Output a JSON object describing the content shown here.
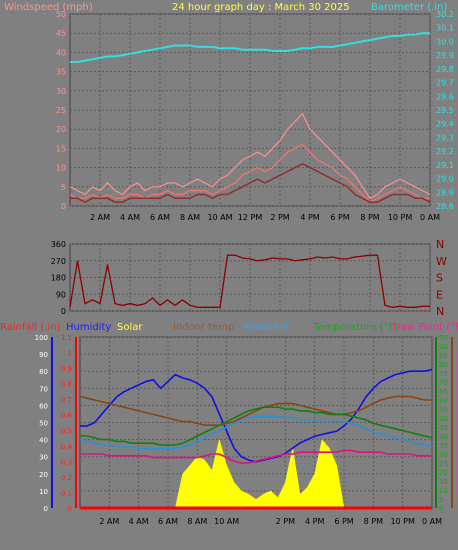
{
  "header": {
    "windspeed_label": "Windspeed (mph)",
    "title": "24 hour graph day : March 30 2025",
    "barometer_label": "Barometer (.in)"
  },
  "colors": {
    "background": "#808080",
    "grid": "#5a5a5a",
    "windspeed": "#ff7070",
    "gust": "#ff9090",
    "wind_avg": "#8c3030",
    "barometer": "#30e0e0",
    "direction": "#8b0000",
    "rainfall": "#ff0000",
    "humidity": "#1010e0",
    "solar": "#ffff00",
    "indoor_temp": "#8b4513",
    "windchill": "#2f8fd0",
    "temperature": "#108010",
    "dewpoint": "#e01080"
  },
  "chart_data": [
    {
      "type": "line",
      "name": "wind_barometer",
      "x_ticks": [
        "2 AM",
        "4 AM",
        "6 AM",
        "8 AM",
        "10 AM",
        "12 PM",
        "2 PM",
        "4 PM",
        "6 PM",
        "8 PM",
        "10 PM",
        "0 AM"
      ],
      "x_hours": [
        0,
        0.5,
        1,
        1.5,
        2,
        2.5,
        3,
        3.5,
        4,
        4.5,
        5,
        5.5,
        6,
        6.5,
        7,
        7.5,
        8,
        8.5,
        9,
        9.5,
        10,
        10.5,
        11,
        11.5,
        12,
        12.5,
        13,
        13.5,
        14,
        14.5,
        15,
        15.5,
        16,
        16.5,
        17,
        17.5,
        18,
        18.5,
        19,
        19.5,
        20,
        20.5,
        21,
        21.5,
        22,
        22.5,
        23,
        23.5,
        24
      ],
      "y_left": {
        "label": "Windspeed (mph)",
        "ticks": [
          0,
          5,
          10,
          15,
          20,
          25,
          30,
          35,
          40,
          45,
          50
        ],
        "ylim": [
          0,
          50
        ]
      },
      "y_right": {
        "label": "Barometer (.in)",
        "ticks": [
          28.8,
          28.9,
          29.0,
          29.1,
          29.2,
          29.3,
          29.4,
          29.5,
          29.6,
          29.7,
          29.8,
          29.9,
          30.0,
          30.1,
          30.2
        ],
        "ylim": [
          28.8,
          30.2
        ]
      },
      "series": [
        {
          "key": "gust",
          "values": [
            5,
            4,
            3,
            5,
            4,
            6,
            4,
            3,
            5,
            6,
            4,
            5,
            5,
            6,
            6,
            5,
            6,
            7,
            6,
            5,
            7,
            8,
            10,
            12,
            13,
            14,
            13,
            15,
            17,
            20,
            22,
            24,
            20,
            18,
            16,
            14,
            12,
            10,
            8,
            5,
            2,
            3,
            5,
            6,
            7,
            6,
            5,
            4,
            3
          ]
        },
        {
          "key": "windspeed",
          "values": [
            3,
            2,
            2,
            3,
            2,
            3,
            2,
            2,
            3,
            3,
            2,
            3,
            3,
            4,
            3,
            3,
            4,
            4,
            4,
            3,
            4,
            5,
            6,
            8,
            9,
            10,
            9,
            10,
            12,
            14,
            15,
            16,
            14,
            12,
            11,
            10,
            8,
            7,
            5,
            3,
            1,
            2,
            3,
            4,
            5,
            4,
            3,
            2,
            2
          ]
        },
        {
          "key": "wind_avg",
          "values": [
            2,
            2,
            1,
            2,
            2,
            2,
            1,
            1,
            2,
            2,
            2,
            2,
            2,
            3,
            2,
            2,
            2,
            3,
            3,
            2,
            3,
            3,
            4,
            5,
            6,
            7,
            6,
            7,
            8,
            9,
            10,
            11,
            10,
            9,
            8,
            7,
            6,
            5,
            3,
            2,
            1,
            1,
            2,
            3,
            3,
            3,
            2,
            2,
            1
          ]
        },
        {
          "key": "barometer",
          "values": [
            29.85,
            29.85,
            29.86,
            29.87,
            29.88,
            29.89,
            29.89,
            29.9,
            29.91,
            29.92,
            29.93,
            29.94,
            29.95,
            29.96,
            29.97,
            29.97,
            29.97,
            29.96,
            29.96,
            29.96,
            29.95,
            29.95,
            29.95,
            29.94,
            29.94,
            29.94,
            29.94,
            29.93,
            29.93,
            29.93,
            29.94,
            29.95,
            29.95,
            29.96,
            29.96,
            29.96,
            29.97,
            29.98,
            29.99,
            30.0,
            30.01,
            30.02,
            30.03,
            30.04,
            30.04,
            30.05,
            30.05,
            30.06,
            30.06
          ]
        }
      ]
    },
    {
      "type": "line",
      "name": "wind_direction",
      "x_ticks": [],
      "y_left": {
        "ticks": [
          0,
          90,
          180,
          270,
          360
        ],
        "ylim": [
          0,
          360
        ]
      },
      "y_right_labels": [
        "N",
        "W",
        "S",
        "E",
        "N"
      ],
      "series": [
        {
          "key": "direction",
          "values": [
            20,
            270,
            40,
            60,
            40,
            250,
            40,
            30,
            40,
            30,
            40,
            70,
            30,
            60,
            30,
            60,
            30,
            20,
            20,
            20,
            20,
            300,
            300,
            285,
            280,
            270,
            275,
            285,
            280,
            280,
            270,
            275,
            280,
            290,
            285,
            290,
            280,
            280,
            290,
            295,
            300,
            300,
            30,
            20,
            25,
            20,
            20,
            25,
            25
          ]
        }
      ]
    },
    {
      "type": "line",
      "name": "temperature_humidity",
      "legend": [
        "Rainfall (.in)",
        "Humidity",
        "Solar",
        "Indoor temp",
        "Windchill",
        "Temperature (°F)",
        "Dew Point (°F)"
      ],
      "x_ticks": [
        "2 AM",
        "4 AM",
        "6 AM",
        "8 AM",
        "10 AM",
        "2 PM",
        "4 PM",
        "6 PM",
        "8 PM",
        "10 PM",
        "0 AM"
      ],
      "y_humidity": {
        "ticks": [
          0,
          10,
          20,
          30,
          40,
          50,
          60,
          70,
          80,
          90,
          100
        ],
        "ylim": [
          0,
          100
        ]
      },
      "y_rain": {
        "ticks": [
          0,
          0.1,
          0.2,
          0.3,
          0.4,
          0.5,
          0.6,
          0.7,
          0.8,
          0.9,
          1,
          1.1
        ],
        "ylim": [
          0,
          1.1
        ]
      },
      "y_temp": {
        "ticks": [
          0,
          5,
          10,
          15,
          20,
          25,
          30,
          35,
          40,
          45,
          50,
          55,
          60,
          65,
          70,
          75,
          80,
          85,
          90,
          95
        ],
        "ylim": [
          0,
          95
        ]
      },
      "series": [
        {
          "key": "humidity",
          "values": [
            48,
            48,
            50,
            55,
            60,
            65,
            68,
            70,
            72,
            74,
            75,
            70,
            74,
            78,
            76,
            75,
            73,
            70,
            65,
            55,
            45,
            35,
            30,
            28,
            27,
            28,
            29,
            30,
            32,
            35,
            38,
            40,
            42,
            43,
            44,
            45,
            48,
            52,
            58,
            65,
            70,
            74,
            76,
            78,
            79,
            80,
            80,
            80,
            81
          ]
        },
        {
          "key": "indoor_temp",
          "values": [
            62,
            61,
            60,
            59,
            58,
            57,
            56,
            55,
            54,
            53,
            52,
            51,
            50,
            49,
            48,
            48,
            47,
            46,
            46,
            46,
            47,
            48,
            50,
            52,
            54,
            56,
            57,
            58,
            58,
            58,
            57,
            56,
            55,
            54,
            53,
            52,
            52,
            53,
            54,
            56,
            58,
            60,
            61,
            62,
            62,
            62,
            61,
            60,
            60
          ]
        },
        {
          "key": "temperature",
          "values": [
            40,
            40,
            39,
            38,
            38,
            37,
            37,
            36,
            36,
            36,
            36,
            35,
            35,
            35,
            36,
            38,
            40,
            42,
            44,
            46,
            48,
            50,
            52,
            54,
            55,
            56,
            56,
            56,
            55,
            55,
            54,
            54,
            53,
            53,
            52,
            52,
            52,
            51,
            50,
            49,
            47,
            46,
            45,
            44,
            43,
            42,
            41,
            40,
            39
          ]
        },
        {
          "key": "windchill",
          "values": [
            38,
            37,
            36,
            35,
            35,
            34,
            34,
            34,
            33,
            33,
            33,
            33,
            33,
            33,
            34,
            35,
            37,
            39,
            41,
            43,
            45,
            47,
            49,
            50,
            51,
            51,
            51,
            51,
            50,
            50,
            49,
            49,
            49,
            48,
            48,
            48,
            48,
            47,
            46,
            44,
            42,
            41,
            40,
            39,
            38,
            37,
            36,
            35,
            34
          ]
        },
        {
          "key": "dewpoint",
          "values": [
            30,
            30,
            30,
            30,
            29,
            29,
            29,
            29,
            29,
            29,
            28,
            28,
            28,
            28,
            28,
            28,
            28,
            29,
            30,
            30,
            28,
            26,
            25,
            25,
            26,
            27,
            28,
            29,
            30,
            30,
            31,
            31,
            31,
            31,
            31,
            31,
            32,
            32,
            31,
            31,
            31,
            31,
            30,
            30,
            30,
            30,
            29,
            29,
            29
          ]
        },
        {
          "key": "solar",
          "values": [
            0,
            0,
            0,
            0,
            0,
            0,
            0,
            0,
            0,
            0,
            0,
            0,
            0,
            0,
            20,
            25,
            30,
            28,
            22,
            40,
            25,
            15,
            10,
            8,
            5,
            8,
            10,
            6,
            15,
            35,
            8,
            12,
            20,
            40,
            35,
            25,
            0,
            0,
            0,
            0,
            0,
            0,
            0,
            0,
            0,
            0,
            0,
            0,
            0
          ]
        },
        {
          "key": "rainfall",
          "values": [
            0,
            0,
            0,
            0,
            0,
            0,
            0,
            0,
            0,
            0,
            0,
            0,
            0,
            0,
            0,
            0,
            0,
            0,
            0,
            0,
            0,
            0,
            0,
            0,
            0,
            0,
            0,
            0,
            0,
            0,
            0,
            0,
            0,
            0,
            0,
            0,
            0,
            0,
            0,
            0,
            0,
            0,
            0,
            0,
            0,
            0,
            0,
            0,
            0
          ]
        }
      ]
    }
  ],
  "bottom_legend": {
    "rainfall": "Rainfall (.in)",
    "humidity": "Humidity",
    "solar": "Solar",
    "indoor": "Indoor temp",
    "windchill": "Windchill",
    "temperature": "Temperature (°F)",
    "dewpoint": "Dew Point (°F)"
  }
}
